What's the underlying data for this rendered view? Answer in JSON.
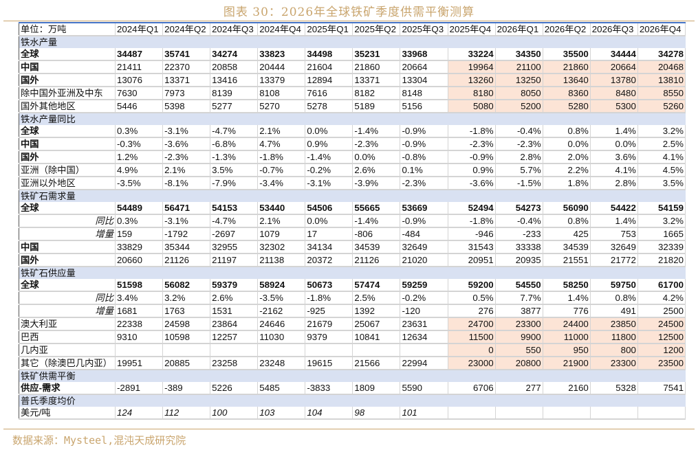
{
  "title": "图表 30：2026年全球铁矿季度供需平衡测算",
  "source": "数据来源：Mysteel,混沌天成研究院",
  "colors": {
    "section_bg": "#d9e1f2",
    "forecast_bg": "#fce4d6",
    "accent": "#c9a56e",
    "border_blue": "#4472c4"
  },
  "table": {
    "unit_label": "单位：万吨",
    "columns": [
      "2024年Q1",
      "2024年Q2",
      "2024年Q3",
      "2024年Q4",
      "2025年Q1",
      "2025年Q2",
      "2025年Q3",
      "2025年Q4",
      "2026年Q1",
      "2026年Q2",
      "2026年Q3",
      "2026年Q4"
    ],
    "rows": [
      {
        "type": "section",
        "label": "铁水产量"
      },
      {
        "type": "data",
        "label": "全球",
        "bold_label": true,
        "bold_values": true,
        "values": [
          "34487",
          "35741",
          "34274",
          "33823",
          "34498",
          "35231",
          "33968",
          "33224",
          "34350",
          "35500",
          "34444",
          "34278"
        ]
      },
      {
        "type": "data",
        "label": "中国",
        "bold_label": true,
        "pink": true,
        "values": [
          "21411",
          "22370",
          "20858",
          "20444",
          "21604",
          "21860",
          "20664",
          "19964",
          "21100",
          "21860",
          "20664",
          "20468"
        ]
      },
      {
        "type": "data",
        "label": "国外",
        "bold_label": true,
        "pink": true,
        "values": [
          "13076",
          "13371",
          "13416",
          "13379",
          "12894",
          "13371",
          "13304",
          "13260",
          "13250",
          "13640",
          "13780",
          "13810"
        ]
      },
      {
        "type": "data",
        "label": "除中国外亚洲及中东",
        "pink": true,
        "values": [
          "7630",
          "7973",
          "8139",
          "8108",
          "7616",
          "8182",
          "8148",
          "8180",
          "8050",
          "8360",
          "8480",
          "8550"
        ]
      },
      {
        "type": "data",
        "label": "国外其他地区",
        "pink": true,
        "values": [
          "5446",
          "5398",
          "5277",
          "5270",
          "5278",
          "5189",
          "5156",
          "5080",
          "5200",
          "5280",
          "5300",
          "5260"
        ]
      },
      {
        "type": "section",
        "label": "铁水产量同比"
      },
      {
        "type": "data",
        "label": "全球",
        "bold_label": true,
        "values": [
          "0.3%",
          "-3.1%",
          "-4.7%",
          "2.1%",
          "0.0%",
          "-1.4%",
          "-0.9%",
          "-1.8%",
          "-0.4%",
          "0.8%",
          "1.4%",
          "3.2%"
        ]
      },
      {
        "type": "data",
        "label": "中国",
        "bold_label": true,
        "values": [
          "-0.3%",
          "-3.6%",
          "-6.8%",
          "4.7%",
          "0.9%",
          "-2.3%",
          "-0.9%",
          "-2.3%",
          "-2.3%",
          "0.0%",
          "0.0%",
          "2.5%"
        ]
      },
      {
        "type": "data",
        "label": "国外",
        "bold_label": true,
        "values": [
          "1.2%",
          "-2.3%",
          "-1.3%",
          "-1.8%",
          "-1.4%",
          "0.0%",
          "-0.8%",
          "-0.9%",
          "2.8%",
          "2.0%",
          "3.6%",
          "4.1%"
        ]
      },
      {
        "type": "data",
        "label": "亚洲（除中国）",
        "values": [
          "4.9%",
          "2.1%",
          "3.5%",
          "-0.7%",
          "-0.2%",
          "2.6%",
          "0.1%",
          "0.9%",
          "5.7%",
          "2.2%",
          "4.1%",
          "4.5%"
        ]
      },
      {
        "type": "data",
        "label": "亚洲以外地区",
        "values": [
          "-3.5%",
          "-8.1%",
          "-7.9%",
          "-3.4%",
          "-3.1%",
          "-3.9%",
          "-2.3%",
          "-3.6%",
          "-1.5%",
          "1.8%",
          "2.8%",
          "3.5%"
        ]
      },
      {
        "type": "section",
        "label": "铁矿石需求量"
      },
      {
        "type": "data",
        "label": "全球",
        "bold_label": true,
        "bold_values": true,
        "values": [
          "54489",
          "56471",
          "54153",
          "53440",
          "54506",
          "55665",
          "53669",
          "52494",
          "54273",
          "56090",
          "54422",
          "54159"
        ]
      },
      {
        "type": "data",
        "label": "同比",
        "sub": true,
        "values": [
          "0.3%",
          "-3.1%",
          "-4.7%",
          "2.1%",
          "0.0%",
          "-1.4%",
          "-0.9%",
          "-1.8%",
          "-0.4%",
          "0.8%",
          "1.4%",
          "3.2%"
        ]
      },
      {
        "type": "data",
        "label": "增量",
        "sub": true,
        "values": [
          "159",
          "-1792",
          "-2697",
          "1079",
          "17",
          "-806",
          "-484",
          "-946",
          "-233",
          "425",
          "753",
          "1665"
        ]
      },
      {
        "type": "data",
        "label": "中国",
        "bold_label": true,
        "values": [
          "33829",
          "35344",
          "32955",
          "32302",
          "34134",
          "34539",
          "32649",
          "31543",
          "33338",
          "34539",
          "32649",
          "32339"
        ]
      },
      {
        "type": "data",
        "label": "国外",
        "bold_label": true,
        "values": [
          "20660",
          "21126",
          "21197",
          "21138",
          "20372",
          "21126",
          "21020",
          "20951",
          "20935",
          "21551",
          "21772",
          "21820"
        ]
      },
      {
        "type": "section",
        "label": "铁矿石供应量"
      },
      {
        "type": "data",
        "label": "全球",
        "bold_label": true,
        "bold_values": true,
        "values": [
          "51598",
          "56082",
          "59379",
          "58924",
          "50673",
          "57474",
          "59259",
          "59200",
          "54550",
          "58250",
          "59750",
          "61700"
        ]
      },
      {
        "type": "data",
        "label": "同比",
        "sub": true,
        "values": [
          "3.4%",
          "3.2%",
          "2.6%",
          "-3.5%",
          "-1.8%",
          "2.5%",
          "-0.2%",
          "0.5%",
          "7.7%",
          "1.4%",
          "0.8%",
          "4.2%"
        ]
      },
      {
        "type": "data",
        "label": "增量",
        "sub": true,
        "values": [
          "1681",
          "1763",
          "1531",
          "-2162",
          "-925",
          "1392",
          "-120",
          "276",
          "3877",
          "776",
          "491",
          "2500"
        ]
      },
      {
        "type": "data",
        "label": "澳大利亚",
        "pink": true,
        "values": [
          "22338",
          "24598",
          "23864",
          "24646",
          "21679",
          "25067",
          "23631",
          "24700",
          "23300",
          "24400",
          "23850",
          "24500"
        ]
      },
      {
        "type": "data",
        "label": "巴西",
        "pink": true,
        "values": [
          "9310",
          "10598",
          "12257",
          "11030",
          "9379",
          "10841",
          "12634",
          "11500",
          "9900",
          "11000",
          "11800",
          "12500"
        ]
      },
      {
        "type": "data",
        "label": "几内亚",
        "pink": true,
        "values": [
          "",
          "",
          "",
          "",
          "",
          "",
          "",
          "0",
          "550",
          "950",
          "800",
          "1200"
        ]
      },
      {
        "type": "data",
        "label": "其它（除澳巴几内亚）",
        "pink": true,
        "values": [
          "19951",
          "20885",
          "23258",
          "23248",
          "19615",
          "21566",
          "22994",
          "23000",
          "20800",
          "21900",
          "23300",
          "23500"
        ]
      },
      {
        "type": "section",
        "label": "铁矿供需平衡"
      },
      {
        "type": "data",
        "label": "供应-需求",
        "bold_label": true,
        "values": [
          "-2891",
          "-389",
          "5226",
          "5485",
          "-3833",
          "1809",
          "5590",
          "6706",
          "277",
          "2160",
          "5328",
          "7541"
        ]
      },
      {
        "type": "section",
        "label": "普氏季度均价"
      },
      {
        "type": "data",
        "label": "美元/吨",
        "italic_values": true,
        "values": [
          "124",
          "112",
          "100",
          "103",
          "104",
          "98",
          "101",
          "",
          "",
          "",
          "",
          ""
        ]
      }
    ]
  }
}
